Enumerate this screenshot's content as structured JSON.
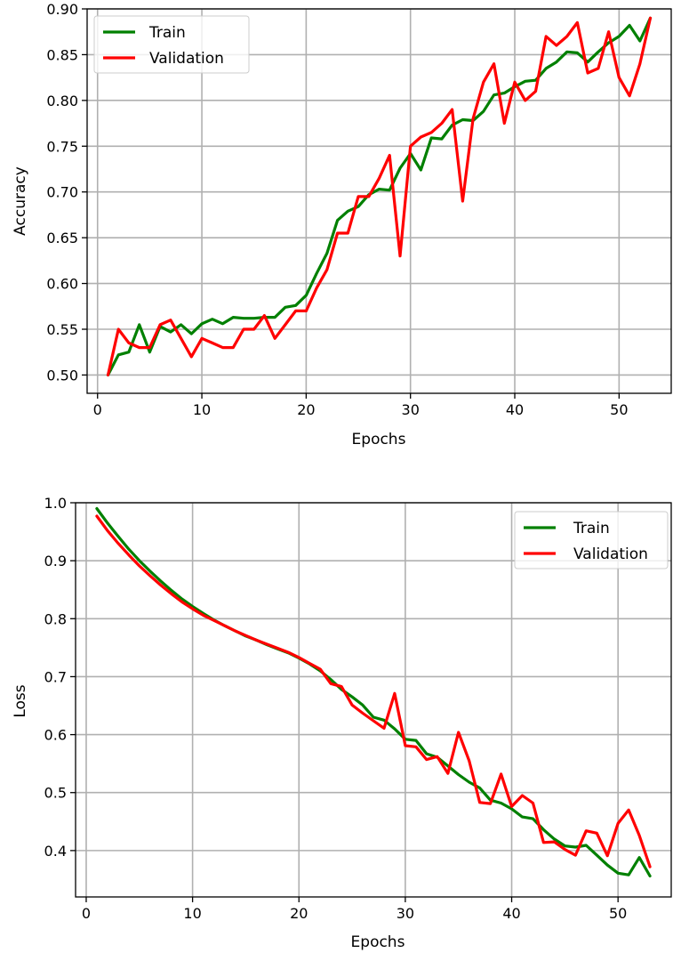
{
  "colors": {
    "train": "#008000",
    "validation": "#ff0000",
    "grid": "#b0b0b0"
  },
  "chart_data": [
    {
      "type": "line",
      "xlabel": "Epochs",
      "ylabel": "Accuracy",
      "xlim": [
        -1,
        55
      ],
      "ylim": [
        0.48,
        0.9
      ],
      "grid": true,
      "legend_position": "top-left",
      "x_ticks": [
        {
          "value": 0,
          "label": "0"
        },
        {
          "value": 10,
          "label": "10"
        },
        {
          "value": 20,
          "label": "20"
        },
        {
          "value": 30,
          "label": "30"
        },
        {
          "value": 40,
          "label": "40"
        },
        {
          "value": 50,
          "label": "50"
        }
      ],
      "y_ticks": [
        {
          "value": 0.5,
          "label": "0.50"
        },
        {
          "value": 0.55,
          "label": "0.55"
        },
        {
          "value": 0.6,
          "label": "0.60"
        },
        {
          "value": 0.65,
          "label": "0.65"
        },
        {
          "value": 0.7,
          "label": "0.70"
        },
        {
          "value": 0.75,
          "label": "0.75"
        },
        {
          "value": 0.8,
          "label": "0.80"
        },
        {
          "value": 0.85,
          "label": "0.85"
        },
        {
          "value": 0.9,
          "label": "0.90"
        }
      ],
      "x": [
        1,
        2,
        3,
        4,
        5,
        6,
        7,
        8,
        9,
        10,
        11,
        12,
        13,
        14,
        15,
        16,
        17,
        18,
        19,
        20,
        21,
        22,
        23,
        24,
        25,
        26,
        27,
        28,
        29,
        30,
        31,
        32,
        33,
        34,
        35,
        36,
        37,
        38,
        39,
        40,
        41,
        42,
        43,
        44,
        45,
        46,
        47,
        48,
        49,
        50,
        51,
        52,
        53
      ],
      "series": [
        {
          "name": "Train",
          "color_key": "train",
          "values": [
            0.5,
            0.522,
            0.525,
            0.555,
            0.525,
            0.553,
            0.547,
            0.555,
            0.545,
            0.556,
            0.561,
            0.556,
            0.563,
            0.562,
            0.562,
            0.563,
            0.563,
            0.574,
            0.576,
            0.587,
            0.611,
            0.633,
            0.669,
            0.679,
            0.684,
            0.697,
            0.703,
            0.702,
            0.726,
            0.742,
            0.724,
            0.759,
            0.758,
            0.773,
            0.779,
            0.778,
            0.788,
            0.806,
            0.808,
            0.815,
            0.821,
            0.822,
            0.835,
            0.842,
            0.853,
            0.852,
            0.842,
            0.853,
            0.863,
            0.87,
            0.882,
            0.865,
            0.89
          ]
        },
        {
          "name": "Validation",
          "color_key": "validation",
          "values": [
            0.5,
            0.55,
            0.535,
            0.53,
            0.53,
            0.555,
            0.56,
            0.54,
            0.52,
            0.54,
            0.535,
            0.53,
            0.53,
            0.55,
            0.55,
            0.565,
            0.54,
            0.555,
            0.57,
            0.57,
            0.595,
            0.615,
            0.655,
            0.655,
            0.695,
            0.695,
            0.715,
            0.74,
            0.63,
            0.75,
            0.76,
            0.765,
            0.775,
            0.79,
            0.69,
            0.78,
            0.82,
            0.84,
            0.775,
            0.82,
            0.8,
            0.81,
            0.87,
            0.86,
            0.87,
            0.885,
            0.83,
            0.835,
            0.875,
            0.825,
            0.805,
            0.84,
            0.89
          ]
        }
      ]
    },
    {
      "type": "line",
      "xlabel": "Epochs",
      "ylabel": "Loss",
      "xlim": [
        -1,
        55
      ],
      "ylim": [
        0.32,
        1.0
      ],
      "grid": true,
      "legend_position": "top-right",
      "x_ticks": [
        {
          "value": 0,
          "label": "0"
        },
        {
          "value": 10,
          "label": "10"
        },
        {
          "value": 20,
          "label": "20"
        },
        {
          "value": 30,
          "label": "30"
        },
        {
          "value": 40,
          "label": "40"
        },
        {
          "value": 50,
          "label": "50"
        }
      ],
      "y_ticks": [
        {
          "value": 0.4,
          "label": "0.4"
        },
        {
          "value": 0.5,
          "label": "0.5"
        },
        {
          "value": 0.6,
          "label": "0.6"
        },
        {
          "value": 0.7,
          "label": "0.7"
        },
        {
          "value": 0.8,
          "label": "0.8"
        },
        {
          "value": 0.9,
          "label": "0.9"
        },
        {
          "value": 1.0,
          "label": "1.0"
        }
      ],
      "x": [
        1,
        2,
        3,
        4,
        5,
        6,
        7,
        8,
        9,
        10,
        11,
        12,
        13,
        14,
        15,
        16,
        17,
        18,
        19,
        20,
        21,
        22,
        23,
        24,
        25,
        26,
        27,
        28,
        29,
        30,
        31,
        32,
        33,
        34,
        35,
        36,
        37,
        38,
        39,
        40,
        41,
        42,
        43,
        44,
        45,
        46,
        47,
        48,
        49,
        50,
        51,
        52,
        53
      ],
      "series": [
        {
          "name": "Train",
          "color_key": "train",
          "values": [
            0.99,
            0.965,
            0.942,
            0.92,
            0.9,
            0.882,
            0.865,
            0.849,
            0.834,
            0.821,
            0.809,
            0.798,
            0.788,
            0.779,
            0.77,
            0.763,
            0.755,
            0.748,
            0.741,
            0.732,
            0.722,
            0.71,
            0.695,
            0.678,
            0.665,
            0.651,
            0.63,
            0.625,
            0.61,
            0.592,
            0.59,
            0.567,
            0.561,
            0.546,
            0.531,
            0.518,
            0.508,
            0.487,
            0.482,
            0.472,
            0.458,
            0.455,
            0.436,
            0.42,
            0.408,
            0.406,
            0.409,
            0.392,
            0.375,
            0.361,
            0.358,
            0.388,
            0.356
          ]
        },
        {
          "name": "Validation",
          "color_key": "validation",
          "values": [
            0.977,
            0.952,
            0.93,
            0.91,
            0.891,
            0.874,
            0.858,
            0.843,
            0.829,
            0.817,
            0.806,
            0.797,
            0.788,
            0.779,
            0.771,
            0.763,
            0.756,
            0.749,
            0.742,
            0.733,
            0.723,
            0.713,
            0.688,
            0.683,
            0.651,
            0.637,
            0.624,
            0.611,
            0.671,
            0.581,
            0.579,
            0.557,
            0.562,
            0.533,
            0.604,
            0.555,
            0.483,
            0.481,
            0.532,
            0.476,
            0.495,
            0.482,
            0.414,
            0.415,
            0.402,
            0.392,
            0.434,
            0.43,
            0.391,
            0.447,
            0.47,
            0.426,
            0.372
          ]
        }
      ]
    }
  ]
}
